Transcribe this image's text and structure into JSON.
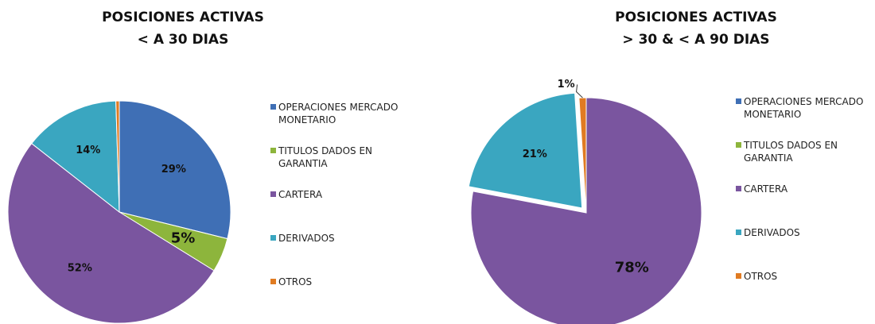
{
  "chart_data": [
    {
      "type": "pie",
      "title": "POSICIONES ACTIVAS",
      "subtitle": "< A 30 DIAS",
      "categories": [
        "OPERACIONES MERCADO MONETARIO",
        "TITULOS DADOS EN GARANTIA",
        "CARTERA",
        "DERIVADOS",
        "OTROS"
      ],
      "values": [
        29,
        5,
        52,
        14,
        0.5
      ],
      "value_labels": [
        "29%",
        "5%",
        "52%",
        "14%",
        null
      ],
      "colors": [
        "#3f6fb5",
        "#8db53c",
        "#7a559f",
        "#3aa6c0",
        "#e07b22"
      ]
    },
    {
      "type": "pie",
      "title": "POSICIONES ACTIVAS",
      "subtitle": "> 30 & < A 90 DIAS",
      "categories": [
        "OPERACIONES MERCADO MONETARIO",
        "TITULOS DADOS EN GARANTIA",
        "CARTERA",
        "DERIVADOS",
        "OTROS"
      ],
      "values": [
        0,
        0,
        78,
        21,
        1
      ],
      "value_labels": [
        null,
        null,
        "78%",
        "21%",
        "1%"
      ],
      "colors": [
        "#3f6fb5",
        "#8db53c",
        "#7a559f",
        "#3aa6c0",
        "#e07b22"
      ]
    }
  ]
}
